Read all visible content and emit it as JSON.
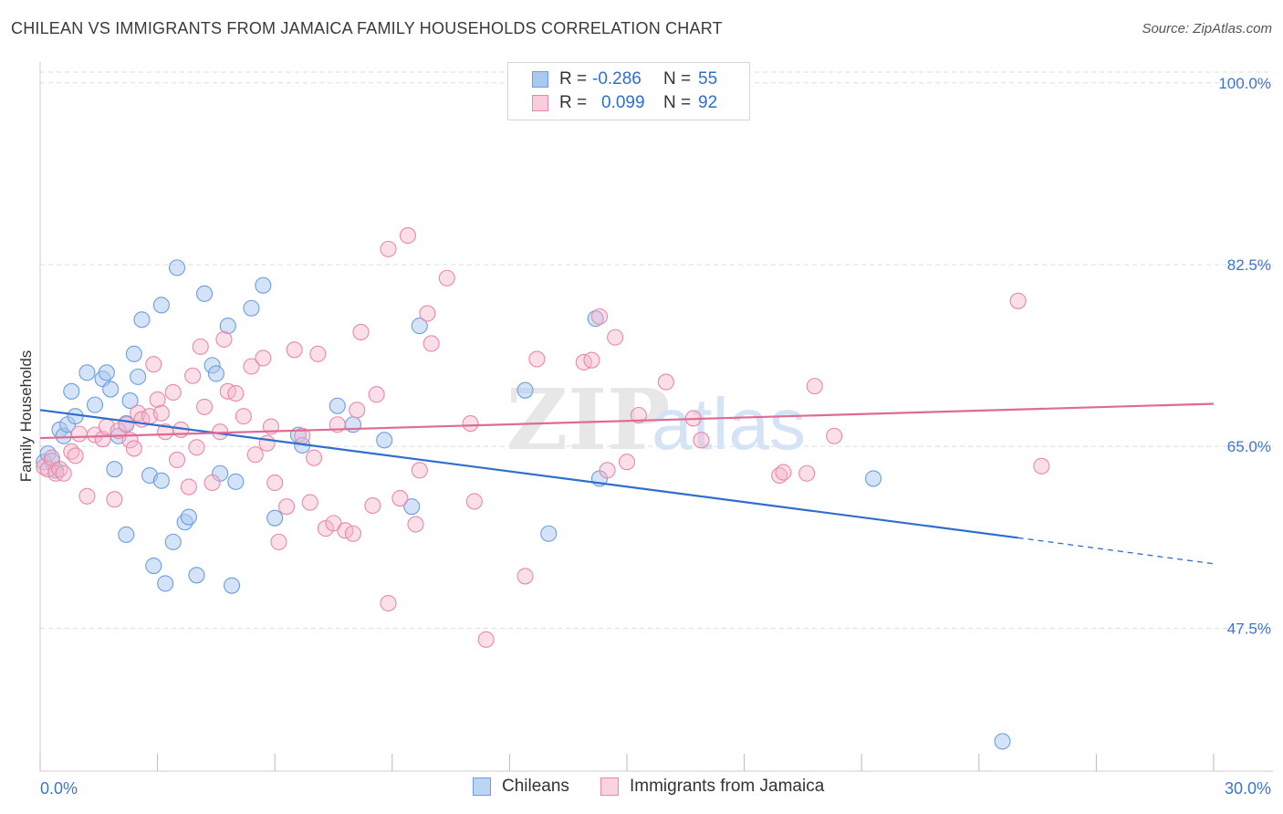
{
  "title": "CHILEAN VS IMMIGRANTS FROM JAMAICA FAMILY HOUSEHOLDS CORRELATION CHART",
  "source": "Source: ZipAtlas.com",
  "watermark": {
    "zip": "ZIP",
    "atlas": "atlas"
  },
  "legend": {
    "blue": {
      "r_label": "R =",
      "r_value": "-0.286",
      "n_label": "N =",
      "n_value": "55"
    },
    "pink": {
      "r_label": "R =",
      "r_value": "0.099",
      "n_label": "N =",
      "n_value": "92"
    }
  },
  "bottom_legend": {
    "blue_label": "Chileans",
    "pink_label": "Immigrants from Jamaica"
  },
  "colors": {
    "blue_fill": "#a9c8f0",
    "blue_stroke": "#6b9ee0",
    "blue_line": "#2f6fcc",
    "pink_fill": "#f5b6cb",
    "pink_stroke": "#e889a8",
    "pink_line": "#e06a96",
    "tick_text": "#3e74cc",
    "grid": "#dddddd"
  },
  "chart_data": {
    "type": "scatter",
    "title": "CHILEAN VS IMMIGRANTS FROM JAMAICA FAMILY HOUSEHOLDS CORRELATION CHART",
    "xlabel": "",
    "ylabel": "Family Households",
    "xlim": [
      0,
      30
    ],
    "ylim": [
      34,
      102
    ],
    "x_tick_labels": [
      "0.0%",
      "30.0%"
    ],
    "y_ticks": [
      {
        "value": 100.0,
        "label": "100.0%"
      },
      {
        "value": 82.5,
        "label": "82.5%"
      },
      {
        "value": 65.0,
        "label": "65.0%"
      },
      {
        "value": 47.5,
        "label": "47.5%"
      }
    ],
    "series": [
      {
        "name": "Chileans",
        "color": "blue",
        "r": -0.286,
        "n": 55,
        "trend": {
          "x0": 0,
          "y0": 68.5,
          "x1": 25.0,
          "y1": 56.2,
          "dash_to_x": 30,
          "dash_to_y": 53.7
        },
        "points": [
          [
            0.1,
            63.5
          ],
          [
            0.2,
            64.3
          ],
          [
            0.3,
            63.6
          ],
          [
            0.4,
            62.7
          ],
          [
            0.5,
            66.6
          ],
          [
            0.6,
            66.0
          ],
          [
            0.7,
            67.1
          ],
          [
            0.8,
            70.3
          ],
          [
            0.9,
            67.9
          ],
          [
            1.2,
            72.1
          ],
          [
            1.4,
            69.0
          ],
          [
            1.6,
            71.5
          ],
          [
            1.7,
            72.1
          ],
          [
            1.8,
            70.5
          ],
          [
            1.9,
            62.8
          ],
          [
            2.0,
            66.0
          ],
          [
            2.2,
            67.2
          ],
          [
            2.2,
            56.5
          ],
          [
            2.3,
            69.4
          ],
          [
            2.4,
            73.9
          ],
          [
            2.5,
            71.7
          ],
          [
            2.6,
            77.2
          ],
          [
            2.8,
            62.2
          ],
          [
            2.9,
            53.5
          ],
          [
            3.1,
            61.7
          ],
          [
            3.1,
            78.6
          ],
          [
            3.2,
            51.8
          ],
          [
            3.4,
            55.8
          ],
          [
            3.5,
            82.2
          ],
          [
            3.7,
            57.7
          ],
          [
            3.8,
            58.2
          ],
          [
            4.0,
            52.6
          ],
          [
            4.2,
            79.7
          ],
          [
            4.4,
            72.8
          ],
          [
            4.5,
            72.0
          ],
          [
            4.6,
            62.4
          ],
          [
            4.8,
            76.6
          ],
          [
            4.9,
            51.6
          ],
          [
            5.0,
            61.6
          ],
          [
            5.4,
            78.3
          ],
          [
            5.7,
            80.5
          ],
          [
            6.0,
            58.1
          ],
          [
            6.6,
            66.1
          ],
          [
            6.7,
            65.1
          ],
          [
            7.6,
            68.9
          ],
          [
            8.0,
            67.1
          ],
          [
            8.8,
            65.6
          ],
          [
            9.5,
            59.2
          ],
          [
            9.7,
            76.6
          ],
          [
            12.4,
            70.4
          ],
          [
            13.0,
            56.6
          ],
          [
            14.2,
            77.3
          ],
          [
            14.3,
            61.9
          ],
          [
            21.3,
            61.9
          ],
          [
            24.6,
            36.6
          ]
        ]
      },
      {
        "name": "Immigrants from Jamaica",
        "color": "pink",
        "r": 0.099,
        "n": 92,
        "trend": {
          "x0": 0,
          "y0": 65.8,
          "x1": 30,
          "y1": 69.1
        },
        "points": [
          [
            0.1,
            63.0
          ],
          [
            0.2,
            62.8
          ],
          [
            0.3,
            63.9
          ],
          [
            0.4,
            62.4
          ],
          [
            0.5,
            62.8
          ],
          [
            0.6,
            62.4
          ],
          [
            0.8,
            64.5
          ],
          [
            0.9,
            64.1
          ],
          [
            1.0,
            66.2
          ],
          [
            1.2,
            60.2
          ],
          [
            1.4,
            66.1
          ],
          [
            1.6,
            65.7
          ],
          [
            1.7,
            66.9
          ],
          [
            1.9,
            59.9
          ],
          [
            2.0,
            66.5
          ],
          [
            2.2,
            67.1
          ],
          [
            2.3,
            65.6
          ],
          [
            2.4,
            64.8
          ],
          [
            2.5,
            68.2
          ],
          [
            2.6,
            67.6
          ],
          [
            2.8,
            67.9
          ],
          [
            2.9,
            72.9
          ],
          [
            3.0,
            69.5
          ],
          [
            3.1,
            68.2
          ],
          [
            3.2,
            66.4
          ],
          [
            3.4,
            70.2
          ],
          [
            3.5,
            63.7
          ],
          [
            3.6,
            66.6
          ],
          [
            3.8,
            61.1
          ],
          [
            3.9,
            71.8
          ],
          [
            4.0,
            64.9
          ],
          [
            4.1,
            74.6
          ],
          [
            4.2,
            68.8
          ],
          [
            4.4,
            61.5
          ],
          [
            4.6,
            66.4
          ],
          [
            4.7,
            75.3
          ],
          [
            4.8,
            70.3
          ],
          [
            5.0,
            70.1
          ],
          [
            5.2,
            67.9
          ],
          [
            5.4,
            72.7
          ],
          [
            5.5,
            64.2
          ],
          [
            5.7,
            73.5
          ],
          [
            5.8,
            65.3
          ],
          [
            5.9,
            66.9
          ],
          [
            6.0,
            61.5
          ],
          [
            6.1,
            55.8
          ],
          [
            6.3,
            59.2
          ],
          [
            6.5,
            74.3
          ],
          [
            6.7,
            66.0
          ],
          [
            6.9,
            59.6
          ],
          [
            7.0,
            63.9
          ],
          [
            7.1,
            73.9
          ],
          [
            7.3,
            57.1
          ],
          [
            7.5,
            57.6
          ],
          [
            7.6,
            67.1
          ],
          [
            7.8,
            56.9
          ],
          [
            8.0,
            56.6
          ],
          [
            8.1,
            68.5
          ],
          [
            8.2,
            76.0
          ],
          [
            8.5,
            59.3
          ],
          [
            8.6,
            70.0
          ],
          [
            8.9,
            84.0
          ],
          [
            8.9,
            49.9
          ],
          [
            9.2,
            60.0
          ],
          [
            9.4,
            85.3
          ],
          [
            9.6,
            57.5
          ],
          [
            9.7,
            62.7
          ],
          [
            9.9,
            77.8
          ],
          [
            10.0,
            74.9
          ],
          [
            10.4,
            81.2
          ],
          [
            11.0,
            67.2
          ],
          [
            11.1,
            59.7
          ],
          [
            11.4,
            46.4
          ],
          [
            12.4,
            52.5
          ],
          [
            12.7,
            73.4
          ],
          [
            13.9,
            73.1
          ],
          [
            14.1,
            73.3
          ],
          [
            14.3,
            77.5
          ],
          [
            14.5,
            62.7
          ],
          [
            14.7,
            75.5
          ],
          [
            15.0,
            63.5
          ],
          [
            15.3,
            68.0
          ],
          [
            16.0,
            71.2
          ],
          [
            16.7,
            67.7
          ],
          [
            16.9,
            65.6
          ],
          [
            18.9,
            62.2
          ],
          [
            19.0,
            62.5
          ],
          [
            19.6,
            62.4
          ],
          [
            19.8,
            70.8
          ],
          [
            20.3,
            66.0
          ],
          [
            25.0,
            79.0
          ],
          [
            25.6,
            63.1
          ]
        ]
      }
    ]
  }
}
